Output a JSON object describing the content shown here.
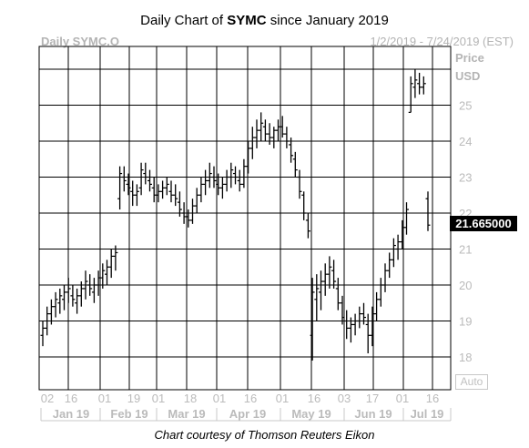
{
  "title": {
    "prefix": "Daily Chart of ",
    "ticker": "SYMC",
    "suffix": " since January 2019"
  },
  "header": {
    "symbol": "Daily SYMC.O",
    "range": "1/2/2019 - 7/24/2019 (EST)"
  },
  "axis_unit": {
    "line1": "Price",
    "line2": "USD"
  },
  "last_price_label": "21.665000",
  "auto_button": "Auto",
  "credit": "Chart courtesy of Thomson Reuters Eikon",
  "colors": {
    "grid": "#000000",
    "bars": "#000000",
    "axis_text": "#bbbbbb",
    "last_box": "#000000"
  },
  "chart_data": {
    "type": "ohlc",
    "ylim": [
      17.2,
      26.6
    ],
    "yticks": [
      18,
      19,
      20,
      21,
      22,
      23,
      24,
      25
    ],
    "current_price": 21.665,
    "x_tick_labels": [
      "02",
      "16",
      "01",
      "19",
      "01",
      "18",
      "01",
      "16",
      "01",
      "16",
      "03",
      "17",
      "01",
      "16"
    ],
    "month_labels": [
      "Jan 19",
      "Feb 19",
      "Mar 19",
      "Apr 19",
      "May 19",
      "Jun 19",
      "Jul 19"
    ],
    "series": [
      {
        "values": [
          [
            18.6,
            19.0,
            18.3,
            18.8
          ],
          [
            18.8,
            19.4,
            18.6,
            19.2
          ],
          [
            19.2,
            19.6,
            18.9,
            19.4
          ],
          [
            19.4,
            19.8,
            19.1,
            19.6
          ],
          [
            19.5,
            19.9,
            19.2,
            19.7
          ],
          [
            19.6,
            20.0,
            19.3,
            19.8
          ],
          [
            19.8,
            20.2,
            19.5,
            19.9
          ],
          [
            19.7,
            20.0,
            19.4,
            19.6
          ],
          [
            19.5,
            19.9,
            19.2,
            19.7
          ],
          [
            19.7,
            20.1,
            19.4,
            19.9
          ],
          [
            19.9,
            20.4,
            19.6,
            20.1
          ],
          [
            20.0,
            20.3,
            19.7,
            19.9
          ],
          [
            19.8,
            20.2,
            19.5,
            20.0
          ],
          [
            20.0,
            20.4,
            19.7,
            20.2
          ],
          [
            20.2,
            20.6,
            19.9,
            20.4
          ],
          [
            20.3,
            20.7,
            20.0,
            20.5
          ],
          [
            20.5,
            21.0,
            20.2,
            20.8
          ],
          [
            20.8,
            21.1,
            20.4,
            20.9
          ],
          [
            22.4,
            23.3,
            22.1,
            23.1
          ],
          [
            23.0,
            23.3,
            22.6,
            22.9
          ],
          [
            22.8,
            23.1,
            22.5,
            22.7
          ],
          [
            22.6,
            22.9,
            22.2,
            22.5
          ],
          [
            22.5,
            22.8,
            22.2,
            22.6
          ],
          [
            22.7,
            23.4,
            22.5,
            23.2
          ],
          [
            23.1,
            23.4,
            22.8,
            23.0
          ],
          [
            22.9,
            23.2,
            22.6,
            22.8
          ],
          [
            22.7,
            23.0,
            22.3,
            22.5
          ],
          [
            22.5,
            22.8,
            22.3,
            22.6
          ],
          [
            22.6,
            22.9,
            22.4,
            22.7
          ],
          [
            22.7,
            23.0,
            22.5,
            22.8
          ],
          [
            22.6,
            22.9,
            22.3,
            22.5
          ],
          [
            22.5,
            22.8,
            22.2,
            22.4
          ],
          [
            22.3,
            22.6,
            21.9,
            22.1
          ],
          [
            22.0,
            22.3,
            21.7,
            21.9
          ],
          [
            21.9,
            22.1,
            21.6,
            21.8
          ],
          [
            21.8,
            22.4,
            21.7,
            22.2
          ],
          [
            22.2,
            22.7,
            22.0,
            22.5
          ],
          [
            22.5,
            23.0,
            22.3,
            22.8
          ],
          [
            22.8,
            23.2,
            22.5,
            22.9
          ],
          [
            22.9,
            23.4,
            22.7,
            23.1
          ],
          [
            23.0,
            23.3,
            22.7,
            22.9
          ],
          [
            22.8,
            23.1,
            22.5,
            22.7
          ],
          [
            22.7,
            23.0,
            22.4,
            22.8
          ],
          [
            22.8,
            23.2,
            22.6,
            23.0
          ],
          [
            23.0,
            23.4,
            22.7,
            23.2
          ],
          [
            23.1,
            23.3,
            22.8,
            23.0
          ],
          [
            22.9,
            23.2,
            22.6,
            22.8
          ],
          [
            22.8,
            23.5,
            22.7,
            23.3
          ],
          [
            23.3,
            24.0,
            23.1,
            23.8
          ],
          [
            23.8,
            24.4,
            23.5,
            24.1
          ],
          [
            24.1,
            24.6,
            23.8,
            24.3
          ],
          [
            24.3,
            24.8,
            24.0,
            24.5
          ],
          [
            24.4,
            24.6,
            24.0,
            24.2
          ],
          [
            24.2,
            24.5,
            23.9,
            24.1
          ],
          [
            24.1,
            24.4,
            23.8,
            24.3
          ],
          [
            24.3,
            24.6,
            24.0,
            24.4
          ],
          [
            24.4,
            24.7,
            24.1,
            24.2
          ],
          [
            24.2,
            24.4,
            23.8,
            24.0
          ],
          [
            23.9,
            24.1,
            23.4,
            23.6
          ],
          [
            23.5,
            23.7,
            23.0,
            23.2
          ],
          [
            23.0,
            23.2,
            22.4,
            22.6
          ],
          [
            22.5,
            22.6,
            21.8,
            22.0
          ],
          [
            21.8,
            22.0,
            21.3,
            21.5
          ],
          [
            18.6,
            20.2,
            17.9,
            19.8
          ],
          [
            19.6,
            20.3,
            19.0,
            19.9
          ],
          [
            19.8,
            20.4,
            19.3,
            20.1
          ],
          [
            20.1,
            20.6,
            19.7,
            20.3
          ],
          [
            20.3,
            20.8,
            19.9,
            20.5
          ],
          [
            20.4,
            20.7,
            19.9,
            20.1
          ],
          [
            19.9,
            20.2,
            19.3,
            19.5
          ],
          [
            19.5,
            19.7,
            18.9,
            19.1
          ],
          [
            19.0,
            19.3,
            18.5,
            18.8
          ],
          [
            18.8,
            19.1,
            18.4,
            18.9
          ],
          [
            18.9,
            19.2,
            18.6,
            19.0
          ],
          [
            19.0,
            19.4,
            18.8,
            19.2
          ],
          [
            19.2,
            19.5,
            18.9,
            19.1
          ],
          [
            18.9,
            19.2,
            18.1,
            18.6
          ],
          [
            18.6,
            19.4,
            18.3,
            19.2
          ],
          [
            19.2,
            19.8,
            19.0,
            19.6
          ],
          [
            19.6,
            20.2,
            19.4,
            20.0
          ],
          [
            20.0,
            20.6,
            19.8,
            20.4
          ],
          [
            20.4,
            20.9,
            20.2,
            20.7
          ],
          [
            20.7,
            21.3,
            20.5,
            21.1
          ],
          [
            21.0,
            21.4,
            20.7,
            21.2
          ],
          [
            21.2,
            21.8,
            21.0,
            21.6
          ],
          [
            21.6,
            22.3,
            21.4,
            22.1
          ],
          [
            24.8,
            25.8,
            24.8,
            25.6
          ],
          [
            25.5,
            26.0,
            25.2,
            25.7
          ],
          [
            25.6,
            25.9,
            25.3,
            25.5
          ],
          [
            25.5,
            25.8,
            25.3,
            25.6
          ],
          [
            22.4,
            22.6,
            21.5,
            21.665
          ]
        ]
      }
    ]
  }
}
